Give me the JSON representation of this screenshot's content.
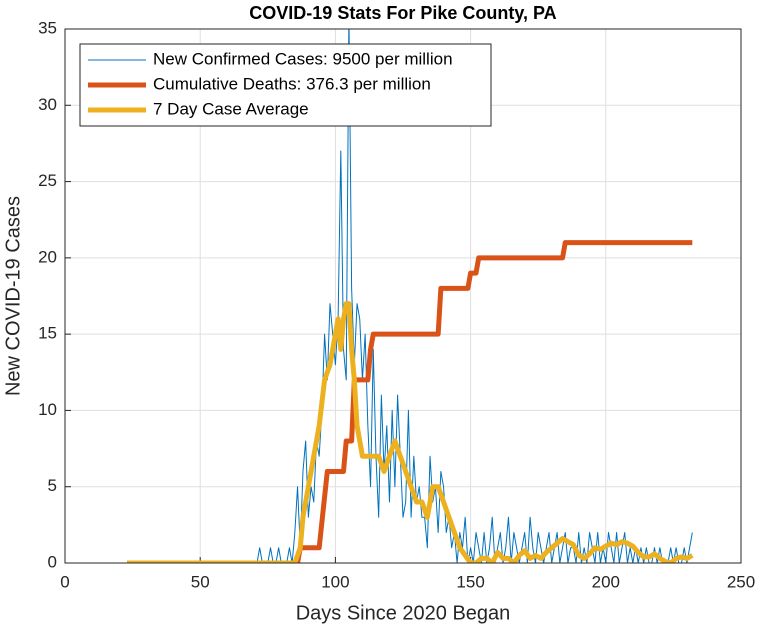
{
  "chart_data": {
    "type": "line",
    "title": "COVID-19 Stats For Pike County, PA",
    "xlabel": "Days Since 2020 Began",
    "ylabel": "New COVID-19 Cases",
    "xlim": [
      0,
      250
    ],
    "xticks": [
      0,
      50,
      100,
      150,
      200,
      250
    ],
    "ylim": [
      0,
      35
    ],
    "yticks": [
      0,
      5,
      10,
      15,
      20,
      25,
      30,
      35
    ],
    "grid": true,
    "legend": "top-left",
    "series": [
      {
        "name": "New Confirmed Cases: 9500 per million",
        "color": "#0072BD",
        "width": 1,
        "x": [
          23,
          70,
          71,
          72,
          73,
          74,
          75,
          76,
          77,
          78,
          79,
          80,
          81,
          82,
          83,
          84,
          85,
          86,
          87,
          88,
          89,
          90,
          91,
          92,
          93,
          94,
          95,
          96,
          97,
          98,
          99,
          100,
          101,
          102,
          103,
          104,
          105,
          106,
          107,
          108,
          109,
          110,
          111,
          112,
          113,
          114,
          115,
          116,
          117,
          118,
          119,
          120,
          121,
          122,
          123,
          124,
          125,
          126,
          127,
          128,
          129,
          130,
          131,
          132,
          133,
          134,
          135,
          136,
          137,
          138,
          139,
          140,
          141,
          142,
          143,
          144,
          145,
          146,
          147,
          148,
          149,
          150,
          151,
          152,
          153,
          154,
          155,
          156,
          157,
          158,
          159,
          160,
          161,
          162,
          163,
          164,
          165,
          166,
          167,
          168,
          169,
          170,
          171,
          172,
          173,
          174,
          175,
          176,
          177,
          178,
          179,
          180,
          181,
          182,
          183,
          184,
          185,
          186,
          187,
          188,
          189,
          190,
          191,
          192,
          193,
          194,
          195,
          196,
          197,
          198,
          199,
          200,
          201,
          202,
          203,
          204,
          205,
          206,
          207,
          208,
          209,
          210,
          211,
          212,
          213,
          214,
          215,
          216,
          217,
          218,
          219,
          220,
          221,
          222,
          223,
          224,
          225,
          226,
          227,
          228,
          229,
          230,
          231,
          232
        ],
        "values": [
          0,
          0,
          0,
          1,
          0,
          0,
          0,
          1,
          0,
          0,
          1,
          0,
          0,
          0,
          1,
          0,
          2,
          5,
          1,
          6,
          8,
          3,
          5,
          4,
          8,
          7,
          10,
          15,
          12,
          17,
          15,
          13,
          16,
          27,
          14,
          12,
          36,
          18,
          13,
          17,
          16,
          12,
          15,
          9,
          5,
          14,
          7,
          3,
          11,
          6,
          9,
          4,
          10,
          5,
          11,
          7,
          3,
          4,
          10,
          3,
          7,
          4,
          5,
          3,
          3,
          1,
          7,
          4,
          5,
          2,
          6,
          5,
          2,
          3,
          1,
          2,
          0,
          2,
          1,
          3,
          0,
          1,
          0,
          2,
          1,
          0,
          2,
          0,
          1,
          3,
          0,
          1,
          2,
          0,
          1,
          3,
          0,
          2,
          1,
          0,
          1,
          2,
          0,
          3,
          1,
          0,
          2,
          1,
          0,
          1,
          2,
          0,
          1,
          2,
          0,
          1,
          2,
          0,
          1,
          1,
          0,
          2,
          0,
          1,
          0,
          2,
          1,
          0,
          2,
          0,
          1,
          0,
          2,
          1,
          0,
          2,
          0,
          1,
          2,
          0,
          1,
          0,
          1,
          0,
          1,
          0,
          1,
          0,
          0,
          1,
          0,
          1,
          0,
          0,
          0,
          1,
          0,
          1,
          0,
          0,
          1,
          0,
          1,
          2
        ]
      },
      {
        "name": "Cumulative Deaths: 376.3 per million",
        "color": "#D95319",
        "width": 5,
        "x": [
          23,
          86,
          87,
          94,
          97,
          103,
          104,
          106,
          107,
          112,
          113,
          114,
          138,
          139,
          149,
          150,
          152,
          153,
          184,
          185,
          232
        ],
        "values": [
          0,
          0,
          1,
          1,
          6,
          6,
          8,
          8,
          12,
          12,
          14,
          15,
          15,
          18,
          18,
          19,
          19,
          20,
          20,
          21,
          21
        ]
      },
      {
        "name": "7 Day Case Average",
        "color": "#EDB120",
        "width": 5,
        "x": [
          23,
          85,
          87,
          88,
          90,
          92,
          94,
          96,
          98,
          100,
          101,
          102,
          103,
          104,
          105,
          106,
          107,
          108,
          109,
          110,
          112,
          114,
          116,
          118,
          120,
          122,
          124,
          126,
          128,
          130,
          132,
          134,
          136,
          138,
          140,
          142,
          144,
          146,
          148,
          150,
          152,
          154,
          156,
          158,
          160,
          162,
          164,
          166,
          168,
          170,
          172,
          174,
          176,
          178,
          180,
          182,
          184,
          186,
          188,
          190,
          192,
          194,
          196,
          198,
          200,
          202,
          204,
          206,
          208,
          210,
          212,
          214,
          216,
          218,
          220,
          222,
          224,
          226,
          228,
          230,
          232
        ],
        "values": [
          0,
          0,
          1,
          3,
          5,
          7,
          9,
          12,
          13,
          15,
          16,
          14,
          16,
          17,
          17,
          14,
          12,
          9,
          8,
          7,
          7,
          7,
          7,
          6,
          7,
          8,
          7,
          6,
          5,
          4,
          4,
          3,
          5,
          5,
          4,
          3,
          2,
          1,
          0.5,
          0,
          0,
          0.3,
          0.3,
          0,
          0.7,
          0.3,
          0.3,
          0,
          0.5,
          0.8,
          0.3,
          0.5,
          0.3,
          0.7,
          1,
          1.3,
          1.6,
          1.4,
          1.2,
          0.5,
          0.3,
          0.6,
          1,
          0.9,
          1.1,
          1.3,
          1.2,
          1.4,
          1.3,
          1.1,
          0.7,
          0.4,
          0.4,
          0.6,
          0.3,
          0.1,
          0,
          0.3,
          0.4,
          0.3,
          0.5
        ]
      }
    ]
  }
}
